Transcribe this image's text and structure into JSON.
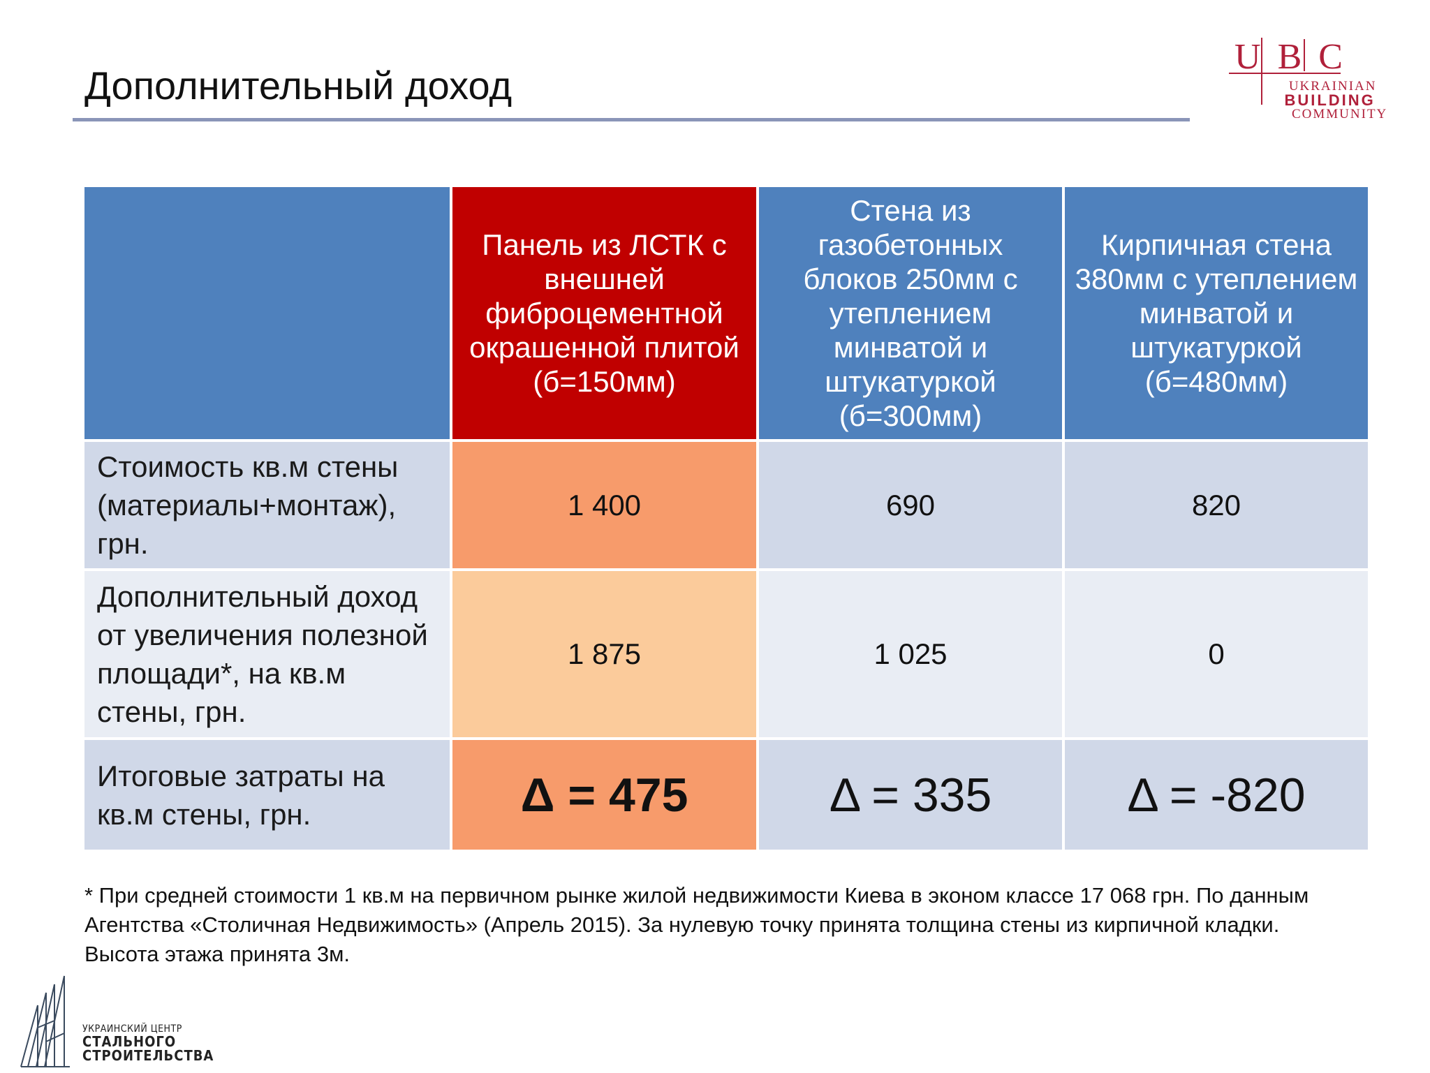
{
  "page": {
    "title": "Дополнительный доход"
  },
  "logos": {
    "ubc": {
      "letters": [
        "U",
        "B",
        "C"
      ],
      "line1": "UKRAINIAN",
      "line2": "BUILDING",
      "line3": "COMMUNITY"
    },
    "uccs": {
      "line1": "УКРАИНСКИЙ ЦЕНТР",
      "line2": "СТАЛЬНОГО",
      "line3": "СТРОИТЕЛЬСТВА"
    }
  },
  "table": {
    "headers": [
      "",
      "Панель из ЛСТК с внешней фиброцементной окрашенной плитой (б=150мм)",
      "Стена из газобетонных блоков 250мм с утеплением минватой и штукатуркой (б=300мм)",
      "Кирпичная стена 380мм с утеплением минватой и штукатуркой (б=480мм)"
    ],
    "rows": [
      {
        "label": "Стоимость кв.м стены (материалы+монтаж), грн.",
        "values": [
          "1 400",
          "690",
          "820"
        ]
      },
      {
        "label": "Дополнительный доход от увеличения полезной площади*, на кв.м стены, грн.",
        "values": [
          "1 875",
          "1 025",
          "0"
        ]
      },
      {
        "label": "Итоговые затраты на кв.м стены, грн.",
        "values": [
          "Δ = 475",
          "Δ = 335",
          "Δ = -820"
        ]
      }
    ]
  },
  "footnote": "* При средней стоимости 1 кв.м на первичном рынке жилой недвижимости Киева в эконом классе 17 068 грн. По данным Агентства «Столичная Недвижимость» (Апрель 2015). За нулевую точку принята толщина стены из кирпичной кладки. Высота этажа принята 3м.",
  "colors": {
    "header_blue": "#4f81bd",
    "header_red": "#c00000",
    "row_light": "#d0d8e8",
    "row_lighter": "#e9edf4",
    "highlight_orange": "#f79b6b",
    "highlight_peach": "#fbcb9b",
    "title_rule": "#8a95b8",
    "logo_red": "#b0203a"
  }
}
